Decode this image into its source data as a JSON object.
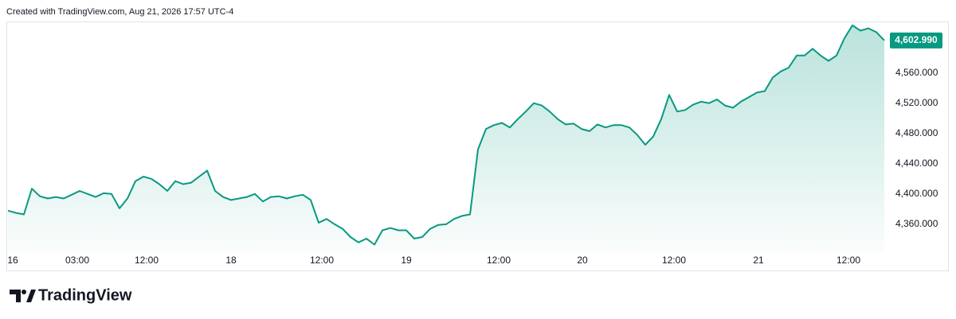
{
  "header": "Created with TradingView.com, Aug 21, 2026 17:57 UTC-4",
  "chart_data": {
    "type": "area",
    "color": "#089981",
    "values": [
      4378,
      4375,
      4373,
      4407,
      4397,
      4394,
      4396,
      4394,
      4399,
      4404,
      4400,
      4396,
      4401,
      4400,
      4381,
      4394,
      4417,
      4423,
      4420,
      4413,
      4404,
      4417,
      4413,
      4415,
      4423,
      4431,
      4404,
      4396,
      4392,
      4394,
      4396,
      4400,
      4390,
      4396,
      4397,
      4394,
      4397,
      4399,
      4392,
      4362,
      4367,
      4360,
      4354,
      4343,
      4336,
      4341,
      4333,
      4352,
      4355,
      4352,
      4352,
      4341,
      4343,
      4354,
      4359,
      4360,
      4367,
      4371,
      4373,
      4459,
      4486,
      4491,
      4494,
      4488,
      4499,
      4509,
      4520,
      4517,
      4509,
      4499,
      4492,
      4493,
      4486,
      4483,
      4492,
      4488,
      4491,
      4491,
      4488,
      4478,
      4465,
      4476,
      4499,
      4531,
      4509,
      4511,
      4518,
      4522,
      4520,
      4525,
      4517,
      4514,
      4522,
      4528,
      4534,
      4536,
      4554,
      4562,
      4567,
      4583,
      4583,
      4592,
      4583,
      4576,
      4583,
      4606,
      4623,
      4616,
      4619,
      4614,
      4602.99
    ],
    "value_labels": [
      null,
      null,
      null,
      null,
      null,
      null,
      null,
      null,
      null,
      null,
      null,
      null,
      null,
      null,
      null,
      null,
      null,
      null,
      null,
      null,
      null,
      null,
      null,
      null,
      null,
      null,
      null,
      null,
      null,
      null,
      null,
      null,
      null,
      null,
      null,
      null,
      null,
      null,
      null,
      null,
      null,
      null,
      null,
      null,
      null,
      null,
      null,
      null,
      null,
      null,
      null,
      null,
      null,
      null,
      null,
      null,
      null,
      null,
      null,
      null,
      null,
      null,
      null,
      null,
      null,
      null,
      null,
      null,
      null,
      null,
      null,
      null,
      null,
      null,
      null,
      null,
      null,
      null,
      null,
      null,
      null,
      null,
      null,
      null,
      null,
      null,
      null,
      null,
      null,
      null,
      null,
      null,
      null,
      null,
      null,
      null,
      null,
      null,
      null,
      null,
      null,
      null,
      null,
      null,
      null,
      null,
      null,
      null,
      null,
      null,
      "4,602.990"
    ],
    "ylim": [
      4322,
      4627
    ],
    "yticks": [
      {
        "value": 4360,
        "label": "4,360.000"
      },
      {
        "value": 4400,
        "label": "4,400.000"
      },
      {
        "value": 4440,
        "label": "4,440.000"
      },
      {
        "value": 4480,
        "label": "4,480.000"
      },
      {
        "value": 4520,
        "label": "4,520.000"
      },
      {
        "value": 4560,
        "label": "4,560.000"
      }
    ],
    "xlim": [
      0,
      110
    ],
    "xticks": [
      {
        "value": 0.6,
        "label": "16"
      },
      {
        "value": 8.7,
        "label": "03:00"
      },
      {
        "value": 17.4,
        "label": "12:00"
      },
      {
        "value": 28,
        "label": "18"
      },
      {
        "value": 39.4,
        "label": "12:00"
      },
      {
        "value": 50,
        "label": "19"
      },
      {
        "value": 61.6,
        "label": "12:00"
      },
      {
        "value": 72.1,
        "label": "20"
      },
      {
        "value": 83.6,
        "label": "12:00"
      },
      {
        "value": 94.2,
        "label": "21"
      },
      {
        "value": 105.5,
        "label": "12:00"
      }
    ],
    "grid": false
  },
  "footer": {
    "brand": "TradingView"
  }
}
